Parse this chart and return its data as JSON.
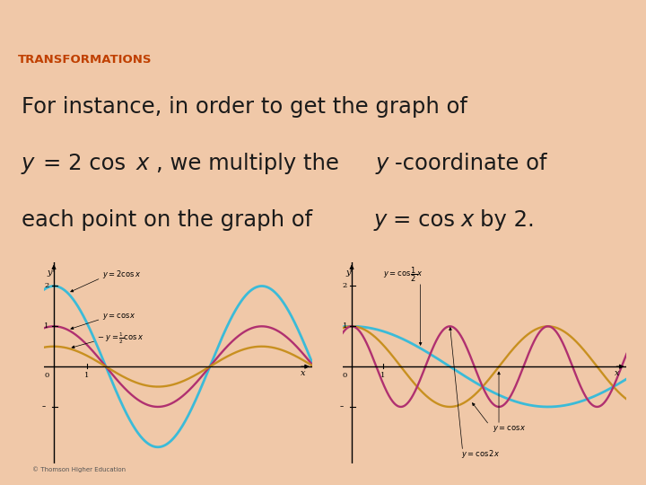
{
  "bg_color": "#f0c8a8",
  "title_bar_color": "#e8b898",
  "title_text": "TRANSFORMATIONS",
  "title_color": "#c04000",
  "title_fontsize": 9.5,
  "body_fontsize": 17.5,
  "body_color": "#1a1a1a",
  "box_bg": "#ffffff",
  "box_edge_color": "#c08060",
  "left_plot": {
    "xlim": [
      -0.3,
      7.8
    ],
    "ylim": [
      -2.4,
      2.6
    ],
    "curve_colors": [
      "#3bbbd8",
      "#b03070",
      "#c89020"
    ],
    "curve_lws": [
      2.0,
      1.7,
      1.7
    ]
  },
  "right_plot": {
    "xlim": [
      -0.3,
      8.8
    ],
    "ylim": [
      -2.4,
      2.6
    ],
    "curve_colors": [
      "#3bbbd8",
      "#c89020",
      "#b03070"
    ],
    "curve_lws": [
      2.0,
      1.7,
      1.7
    ]
  },
  "copyright_text": "© Thomson Higher Education"
}
